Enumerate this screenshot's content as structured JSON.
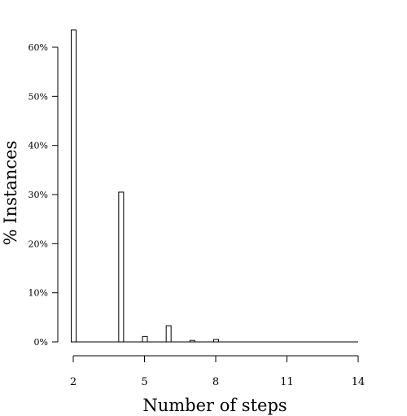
{
  "chart_data": {
    "type": "bar",
    "title": "",
    "xlabel": "Number of steps",
    "ylabel": "% Instances",
    "x_ticks": [
      2,
      5,
      8,
      11,
      14
    ],
    "y_ticks": [
      0,
      10,
      20,
      30,
      40,
      50,
      60
    ],
    "y_tick_labels": [
      "0%",
      "10%",
      "20%",
      "30%",
      "40%",
      "50%",
      "60%"
    ],
    "xlim": [
      2,
      14
    ],
    "ylim": [
      0,
      60
    ],
    "grid": false,
    "x": [
      2,
      3,
      4,
      5,
      6,
      7,
      8,
      9,
      10,
      11,
      12,
      13,
      14
    ],
    "values": [
      63.5,
      0,
      30.5,
      1.1,
      3.3,
      0.3,
      0.5,
      0,
      0,
      0,
      0,
      0,
      0
    ]
  }
}
